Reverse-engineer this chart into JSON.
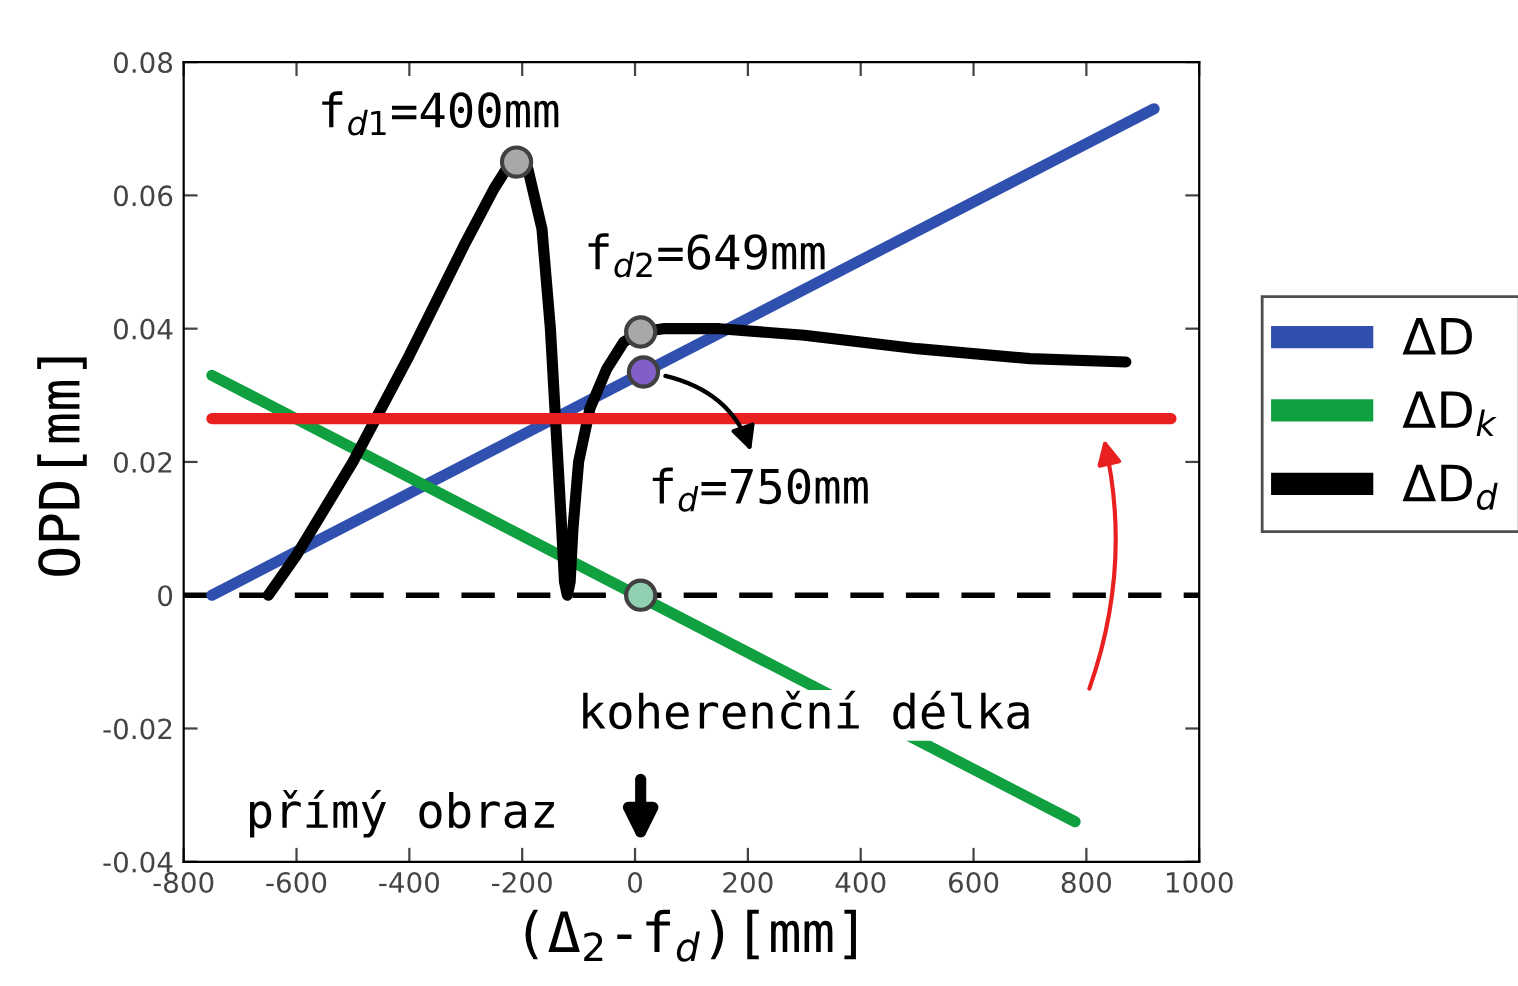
{
  "chart_data": {
    "type": "line",
    "xlabel": "(Δ$_{2}$-f$_{d}$)[mm]",
    "ylabel": "OPD[mm]",
    "xlim": [
      -800,
      1000
    ],
    "ylim": [
      -0.04,
      0.08
    ],
    "xticks": [
      -800,
      -600,
      -400,
      -200,
      0,
      200,
      400,
      600,
      800,
      1000
    ],
    "yticks": [
      -0.04,
      -0.02,
      0,
      0.02,
      0.04,
      0.06,
      0.08
    ],
    "grid": false,
    "legend": "right",
    "line_style": "solid",
    "series": [
      {
        "name": "ΔD",
        "color": "#3050b0",
        "x": [
          -750,
          920
        ],
        "values": [
          0.0,
          0.073
        ]
      },
      {
        "name": "ΔD$_{k}$",
        "color": "#10a040",
        "x": [
          -750,
          780
        ],
        "values": [
          0.033,
          -0.034
        ]
      },
      {
        "name": "ΔD$_{d}$",
        "color": "#000000",
        "x": [
          -650,
          -600,
          -500,
          -400,
          -300,
          -250,
          -220,
          -190,
          -165,
          -150,
          -140,
          -130,
          -125,
          -120,
          -115,
          -110,
          -100,
          -80,
          -50,
          -20,
          10,
          50,
          150,
          300,
          500,
          700,
          870
        ],
        "values": [
          0.0,
          0.006,
          0.02,
          0.036,
          0.053,
          0.061,
          0.065,
          0.064,
          0.055,
          0.04,
          0.025,
          0.01,
          0.002,
          0.0,
          0.002,
          0.01,
          0.02,
          0.028,
          0.034,
          0.038,
          0.0395,
          0.04,
          0.04,
          0.039,
          0.037,
          0.0355,
          0.035
        ]
      },
      {
        "type": "line",
        "color": "#e82020",
        "x": [
          -750,
          950
        ],
        "values": [
          0.0265,
          0.0265
        ]
      },
      {
        "type": "scatter",
        "marker": "circle",
        "x": [
          -210,
          10,
          15,
          10
        ],
        "values": [
          0.065,
          0.0395,
          0.0335,
          0.0
        ],
        "colors": [
          "#a8a8a8",
          "#a8a8a8",
          "#8060c8",
          "#90d0b0"
        ]
      }
    ],
    "ref_lines": [
      {
        "axis": "y",
        "value": 0,
        "color": "#000000",
        "line_style": "dashed"
      }
    ],
    "annotations": [
      {
        "text": "f$_{d1}$=400mm",
        "x": -210,
        "y": 0.065
      },
      {
        "text": "f$_{d2}$=649mm",
        "x": 10,
        "y": 0.0395
      },
      {
        "text": "f$_{d}$=750mm",
        "x": 15,
        "y": 0.0335
      },
      "koherenční délka",
      "přímý obraz"
    ]
  }
}
